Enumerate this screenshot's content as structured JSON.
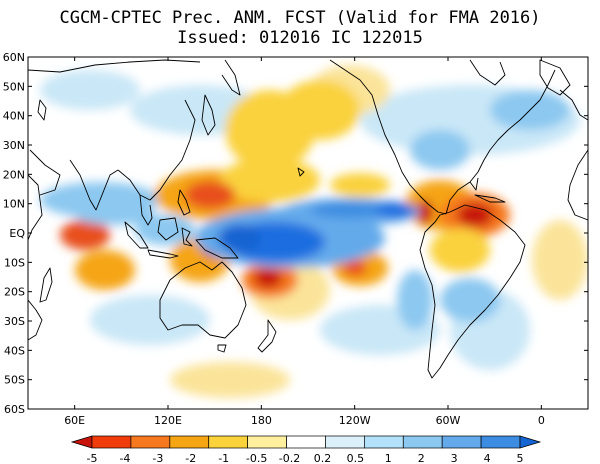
{
  "title": {
    "line1": "CGCM-CPTEC Prec. ANM. FCST  (Valid for FMA 2016)",
    "line2": "Issued:  012016 IC 122015"
  },
  "map": {
    "lat_labels": [
      "60N",
      "50N",
      "40N",
      "30N",
      "20N",
      "10N",
      "EQ",
      "10S",
      "20S",
      "30S",
      "40S",
      "50S",
      "60S"
    ],
    "lon_labels": [
      {
        "lon": 60,
        "label": "60E"
      },
      {
        "lon": 120,
        "label": "120E"
      },
      {
        "lon": 180,
        "label": "180"
      },
      {
        "lon": 240,
        "label": "120W"
      },
      {
        "lon": 300,
        "label": "60W"
      },
      {
        "lon": 360,
        "label": "0"
      }
    ],
    "lon_range": [
      30,
      390
    ],
    "lat_range": [
      -60,
      60
    ]
  },
  "colorbar": {
    "labels": [
      "-5",
      "-4",
      "-3",
      "-2",
      "-1",
      "-0.5",
      "-0.2",
      "0.2",
      "0.5",
      "1",
      "2",
      "3",
      "4",
      "5"
    ],
    "colors": [
      "#c8140a",
      "#f03c0a",
      "#f5781e",
      "#f5a514",
      "#fad23c",
      "#fff0a0",
      "#ffffff",
      "#dcf0fa",
      "#b4e1fa",
      "#8cc8f0",
      "#64aaeb",
      "#3c8ce1",
      "#1464d2"
    ]
  },
  "colors": {
    "strong_dry": "#e8501e",
    "dry": "#f5a514",
    "weak_dry": "#fbe49a",
    "weak_wet": "#c9e7f7",
    "wet": "#7cbaf0",
    "strong_wet": "#1e6ee0",
    "coast": "#000000"
  }
}
